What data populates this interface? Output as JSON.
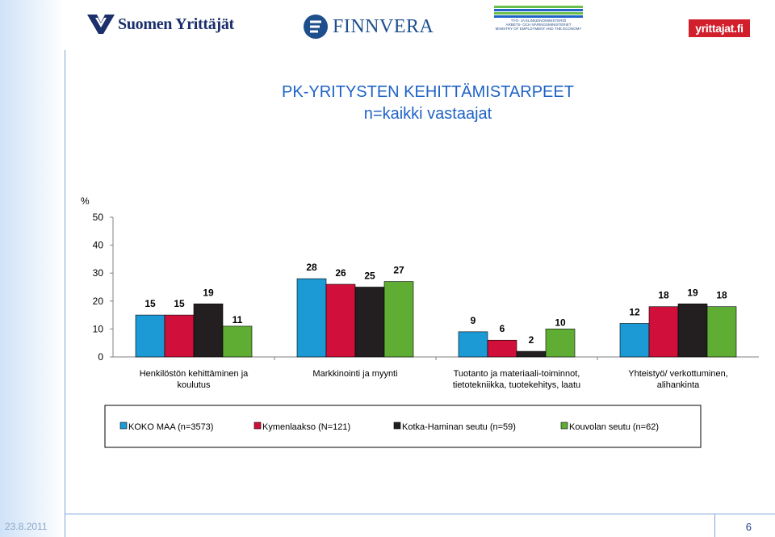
{
  "header": {
    "logo_sy": "Suomen Yrittäjät",
    "logo_finnvera": "FINNVERA",
    "logo_tem_line1": "TYÖ- JA ELINKEINOMINISTERIÖ",
    "logo_tem_line2": "ARBETS- OCH NÄRINGSMINISTERIET",
    "logo_tem_line3": "MINISTRY OF EMPLOYMENT AND THE ECONOMY",
    "logo_yf": "yrittajat.fi"
  },
  "title_line1": "PK-YRITYSTEN KEHITTÄMISTARPEET",
  "title_line2": "n=kaikki vastaajat",
  "footer": {
    "date": "23.8.2011",
    "page": "6"
  },
  "colors": {
    "title": "#1f63c6",
    "accent_red": "#d21f2c",
    "navy": "#1a2f6b"
  },
  "chart_data": {
    "type": "bar",
    "ylabel": "%",
    "ylim": [
      0,
      50
    ],
    "yticks": [
      0,
      10,
      20,
      30,
      40,
      50
    ],
    "grid": false,
    "legend_position": "bottom",
    "categories": [
      [
        "Henkilöstön kehittäminen ja",
        "koulutus"
      ],
      [
        "Markkinointi ja myynti"
      ],
      [
        "Tuotanto ja materiaali-toiminnot,",
        "tietotekniikka, tuotekehitys, laatu"
      ],
      [
        "Yhteistyö/ verkottuminen,",
        "alihankinta"
      ]
    ],
    "series": [
      {
        "name": "KOKO MAA (n=3573)",
        "color": "#1b9ad6",
        "values": [
          15,
          28,
          9,
          12
        ]
      },
      {
        "name": "Kymenlaakso (N=121)",
        "color": "#d0103a",
        "values": [
          15,
          26,
          6,
          18
        ]
      },
      {
        "name": "Kotka-Haminan seutu (n=59)",
        "color": "#231f20",
        "values": [
          19,
          25,
          2,
          19
        ]
      },
      {
        "name": "Kouvolan seutu (n=62)",
        "color": "#5fad33",
        "values": [
          11,
          27,
          10,
          18
        ]
      }
    ]
  }
}
